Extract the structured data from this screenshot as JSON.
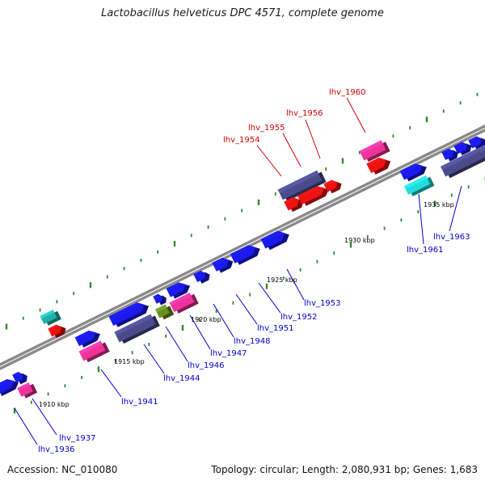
{
  "header": {
    "title": "Lactobacillus helveticus DPC 4571, complete genome"
  },
  "footer": {
    "accession": "Accession: NC_010080",
    "summary": "Topology: circular; Length: 2,080,931 bp; Genes: 1,683"
  },
  "colors": {
    "backbone": "#8a8a8a",
    "tick": "#2e8b2e",
    "label_blue": "#0000cc",
    "label_red": "#cc0000",
    "gene_blue": "#1a1aee",
    "gene_navy": "#4b4b8c",
    "gene_red": "#ee1111",
    "gene_pink": "#ee3399",
    "gene_cyan": "#22dddd",
    "gene_teal": "#20b2aa",
    "gene_olive": "#6b8e23"
  },
  "kbp_labels": [
    "1910 kbp",
    "1915 kbp",
    "1920 kbp",
    "1925 kbp",
    "1930 kbp",
    "1935 kbp"
  ],
  "gene_labels": [
    {
      "text": "lhv_1936",
      "color": "blue"
    },
    {
      "text": "lhv_1937",
      "color": "blue"
    },
    {
      "text": "lhv_1941",
      "color": "blue"
    },
    {
      "text": "lhv_1944",
      "color": "blue"
    },
    {
      "text": "lhv_1946",
      "color": "blue"
    },
    {
      "text": "lhv_1947",
      "color": "blue"
    },
    {
      "text": "lhv_1948",
      "color": "blue"
    },
    {
      "text": "lhv_1951",
      "color": "blue"
    },
    {
      "text": "lhv_1952",
      "color": "blue"
    },
    {
      "text": "lhv_1953",
      "color": "blue"
    },
    {
      "text": "lhv_1954",
      "color": "red"
    },
    {
      "text": "lhv_1955",
      "color": "red"
    },
    {
      "text": "lhv_1956",
      "color": "red"
    },
    {
      "text": "lhv_1960",
      "color": "red"
    },
    {
      "text": "lhv_1961",
      "color": "blue"
    },
    {
      "text": "lhv_1963",
      "color": "blue"
    }
  ]
}
